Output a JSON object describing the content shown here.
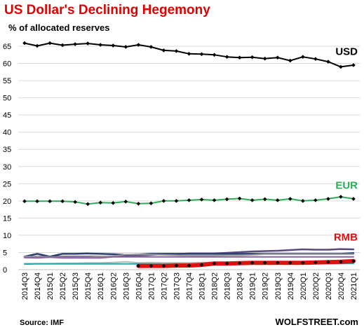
{
  "title": "US Dollar's  Declining Hegemony",
  "subtitle": "% of allocated reserves",
  "source": "Source: IMF",
  "watermark": "WOLFSTREET.com",
  "chart_data": {
    "type": "line",
    "ylim": [
      0,
      65
    ],
    "yticks": [
      0,
      5,
      10,
      15,
      20,
      25,
      30,
      35,
      40,
      45,
      50,
      55,
      60,
      65
    ],
    "grid": true,
    "categories": [
      "2014Q3",
      "2014Q4",
      "2015Q1",
      "2015Q2",
      "2015Q3",
      "2015Q4",
      "2016Q1",
      "2016Q2",
      "2016Q3",
      "2016Q4",
      "2017Q1",
      "2017Q2",
      "2017Q3",
      "2017Q4",
      "2018Q1",
      "2018Q2",
      "2018Q3",
      "2018Q4",
      "2019Q1",
      "2019Q2",
      "2019Q3",
      "2019Q4",
      "2020Q1",
      "2020Q2",
      "2020Q3",
      "2020Q4",
      "2021Q1"
    ],
    "series": [
      {
        "name": "USD",
        "color": "#000000",
        "label_color": "#000000",
        "markers": true,
        "width": 2,
        "values": [
          65.9,
          65.1,
          65.9,
          65.3,
          65.6,
          65.8,
          65.4,
          65.2,
          64.8,
          65.4,
          64.8,
          63.8,
          63.6,
          62.8,
          62.7,
          62.5,
          61.9,
          61.7,
          61.8,
          61.4,
          61.7,
          60.8,
          61.9,
          61.3,
          60.5,
          59.0,
          59.5
        ]
      },
      {
        "name": "EUR",
        "color": "#2eaa59",
        "label_color": "#2eaa59",
        "markers": true,
        "width": 2,
        "values": [
          19.9,
          19.9,
          19.9,
          19.9,
          19.7,
          19.1,
          19.5,
          19.4,
          19.8,
          19.2,
          19.3,
          20.0,
          20.0,
          20.2,
          20.4,
          20.2,
          20.5,
          20.7,
          20.2,
          20.5,
          20.2,
          20.6,
          20.0,
          20.2,
          20.6,
          21.2,
          20.6
        ]
      },
      {
        "name": "RMB",
        "color": "#e01010",
        "label_color": "#e01010",
        "markers": true,
        "width": 6,
        "values": [
          null,
          null,
          null,
          null,
          null,
          null,
          null,
          null,
          null,
          1.1,
          1.1,
          1.1,
          1.2,
          1.2,
          1.4,
          1.8,
          1.8,
          1.9,
          2.0,
          2.0,
          2.0,
          2.0,
          2.0,
          2.1,
          2.2,
          2.3,
          2.5
        ]
      },
      {
        "color": "#5a4a82",
        "markers": false,
        "width": 2.5,
        "values": [
          3.8,
          3.8,
          3.8,
          3.8,
          3.8,
          3.8,
          3.8,
          3.9,
          4.0,
          4.1,
          4.3,
          4.5,
          4.5,
          4.7,
          4.7,
          4.7,
          4.9,
          5.1,
          5.3,
          5.4,
          5.5,
          5.7,
          5.9,
          5.8,
          5.8,
          6.0,
          5.9
        ]
      },
      {
        "color": "#2a3f6e",
        "markers": false,
        "width": 2.5,
        "values": [
          3.8,
          4.6,
          3.8,
          4.6,
          4.6,
          4.7,
          4.6,
          4.5,
          4.3,
          4.4,
          4.6,
          4.6,
          4.6,
          4.6,
          4.6,
          4.6,
          4.6,
          4.6,
          4.6,
          4.6,
          4.6,
          4.6,
          4.6,
          4.6,
          4.6,
          4.6,
          4.8
        ]
      },
      {
        "color": "#9a9a9a",
        "markers": false,
        "width": 2,
        "values": [
          3.8,
          3.8,
          3.7,
          3.6,
          3.6,
          3.6,
          3.8,
          4.0,
          4.4,
          4.4,
          4.4,
          4.3,
          4.2,
          4.1,
          4.1,
          4.1,
          4.2,
          4.2,
          4.3,
          4.5,
          4.5,
          4.5,
          4.5,
          4.5,
          4.5,
          4.5,
          4.5
        ]
      },
      {
        "color": "#8a5fa0",
        "markers": false,
        "width": 2,
        "values": [
          3.5,
          3.4,
          3.6,
          3.4,
          3.4,
          3.4,
          3.4,
          3.7,
          3.7,
          3.7,
          3.7,
          3.7,
          3.7,
          3.7,
          3.7,
          3.7,
          3.7,
          3.7,
          3.7,
          3.7,
          3.7,
          3.7,
          3.7,
          3.7,
          3.7,
          3.7,
          3.7
        ]
      },
      {
        "color": "#b8b8b8",
        "markers": false,
        "width": 2,
        "values": [
          1.8,
          1.8,
          1.8,
          1.9,
          1.9,
          2.0,
          2.0,
          2.1,
          2.3,
          2.0,
          2.1,
          2.0,
          2.0,
          2.0,
          2.1,
          2.1,
          2.0,
          2.1,
          2.0,
          2.0,
          2.0,
          2.0,
          2.1,
          2.1,
          2.1,
          2.1,
          2.2
        ]
      },
      {
        "color": "#2aa8a8",
        "markers": false,
        "width": 2,
        "values": [
          1.6,
          1.7,
          1.7,
          1.7,
          1.7,
          1.7,
          1.7,
          1.7,
          1.7,
          1.7,
          1.7,
          1.6,
          1.7,
          1.7,
          1.7,
          1.8,
          1.8,
          1.8,
          1.8,
          1.8,
          1.8,
          1.8,
          1.8,
          1.8,
          1.8,
          1.8,
          1.8
        ]
      }
    ]
  }
}
